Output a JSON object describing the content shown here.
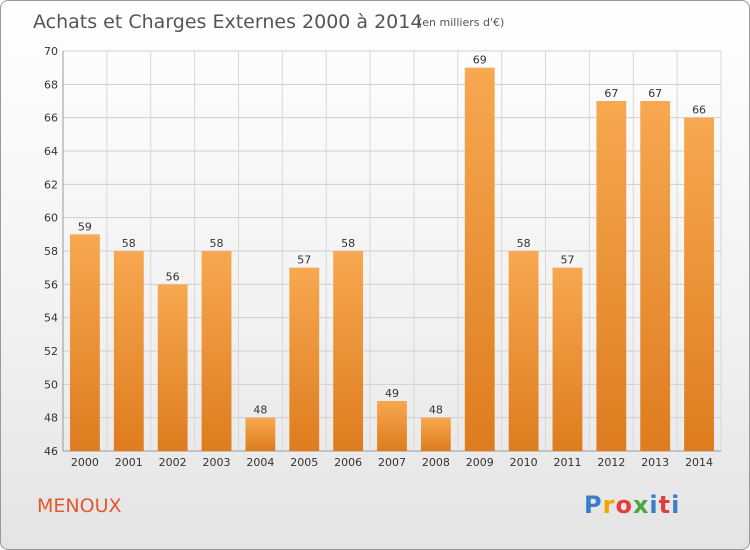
{
  "chart_data": {
    "type": "bar",
    "title": "Achats et Charges Externes 2000 à 2014",
    "unit": "(en milliers d'€)",
    "categories": [
      "2000",
      "2001",
      "2002",
      "2003",
      "2004",
      "2005",
      "2006",
      "2007",
      "2008",
      "2009",
      "2010",
      "2011",
      "2012",
      "2013",
      "2014"
    ],
    "values": [
      59,
      58,
      56,
      58,
      48,
      57,
      58,
      49,
      48,
      69,
      58,
      57,
      67,
      67,
      66
    ],
    "ylim": [
      46,
      70
    ],
    "yticks": [
      46,
      48,
      50,
      52,
      54,
      56,
      58,
      60,
      62,
      64,
      66,
      68,
      70
    ],
    "grid": true,
    "bar_color_top": "#f7a850",
    "bar_color_bottom": "#de7c1e"
  },
  "footer": {
    "commune": "MENOUX",
    "commune_color": "#e4572e",
    "logo_text": "Proxiti",
    "logo_colors": [
      "#3a7dc9",
      "#f0a500",
      "#e23d3d",
      "#48a83f",
      "#3a7dc9",
      "#e23d3d",
      "#3a7dc9"
    ]
  }
}
